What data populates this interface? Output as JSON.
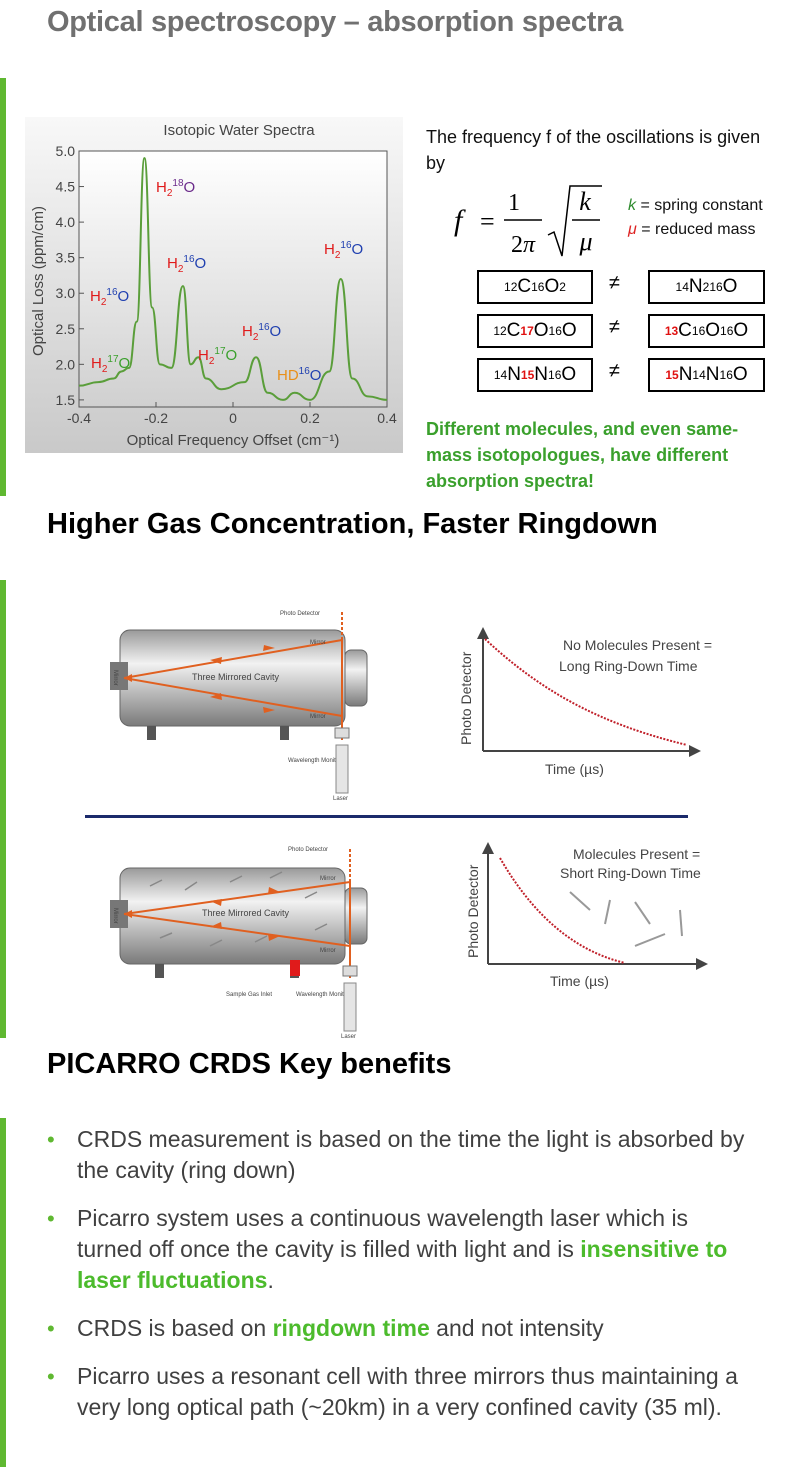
{
  "slide_title": "Optical spectroscopy – absorption spectra",
  "chart": {
    "title": "Isotopic Water Spectra",
    "xlabel": "Optical Frequency Offset (cm⁻¹)",
    "ylabel": "Optical Loss (ppm/cm)",
    "x_ticks": [
      "-0.4",
      "-0.2",
      "0",
      "0.2",
      "0.4"
    ],
    "y_ticks": [
      "1.5",
      "2.0",
      "2.5",
      "3.0",
      "3.5",
      "4.0",
      "4.5",
      "5.0"
    ],
    "peak_labels": {
      "h2_18o": {
        "main": "H",
        "sub": "2",
        "sup": "18",
        "tail": "O"
      },
      "h2_16o_a": {
        "main": "H",
        "sub": "2",
        "sup": "16",
        "tail": "O"
      },
      "h2_16o_b": {
        "main": "H",
        "sub": "2",
        "sup": "16",
        "tail": "O"
      },
      "h2_16o_c": {
        "main": "H",
        "sub": "2",
        "sup": "16",
        "tail": "O"
      },
      "h2_16o_d": {
        "main": "H",
        "sub": "2",
        "sup": "16",
        "tail": "O"
      },
      "h2_17o_a": {
        "main": "H",
        "sub": "2",
        "sup": "17",
        "tail": "O"
      },
      "h2_17o_b": {
        "main": "H",
        "sub": "2",
        "sup": "17",
        "tail": "O"
      },
      "hd16o": {
        "main": "HD",
        "sup": "16",
        "tail": "O"
      }
    }
  },
  "chart_data": {
    "type": "line",
    "title": "Isotopic Water Spectra",
    "xlabel": "Optical Frequency Offset (cm⁻¹)",
    "ylabel": "Optical Loss (ppm/cm)",
    "xlim": [
      -0.4,
      0.4
    ],
    "ylim": [
      1.4,
      5.0
    ],
    "series": [
      {
        "x": [
          -0.4,
          -0.35,
          -0.31,
          -0.29,
          -0.27,
          -0.25,
          -0.23,
          -0.21,
          -0.19,
          -0.16,
          -0.13,
          -0.11,
          -0.09,
          -0.07,
          -0.03,
          0.03,
          0.06,
          0.09,
          0.13,
          0.16,
          0.2,
          0.25,
          0.28,
          0.31,
          0.35,
          0.4
        ],
        "y": [
          1.7,
          1.75,
          1.8,
          1.9,
          1.95,
          2.6,
          4.9,
          2.8,
          2.0,
          1.95,
          3.1,
          2.0,
          2.1,
          1.8,
          1.65,
          1.75,
          2.1,
          1.6,
          1.5,
          1.6,
          1.5,
          1.9,
          3.2,
          1.8,
          1.55,
          1.5
        ],
        "color": "#5a9e3a"
      }
    ]
  },
  "physics": {
    "intro": "The  frequency  f of the oscillations is given by",
    "k_def": "= spring constant",
    "mu_def": "= reduced mass",
    "neq": "≠",
    "rows": [
      {
        "left": [
          {
            "t": "12",
            "s": "sup"
          },
          {
            "t": "C"
          },
          {
            "t": "16",
            "s": "sup"
          },
          {
            "t": "O"
          },
          {
            "t": "2",
            "s": "sub"
          }
        ],
        "right": [
          {
            "t": "14",
            "s": "sup"
          },
          {
            "t": "N"
          },
          {
            "t": "2",
            "s": "sub"
          },
          {
            "t": "16",
            "s": "sup"
          },
          {
            "t": "O"
          }
        ]
      },
      {
        "left": [
          {
            "t": "12",
            "s": "sup"
          },
          {
            "t": "C"
          },
          {
            "t": "17",
            "s": "supred"
          },
          {
            "t": "O"
          },
          {
            "t": "16",
            "s": "sup"
          },
          {
            "t": "O"
          }
        ],
        "right": [
          {
            "t": "13",
            "s": "supred"
          },
          {
            "t": "C"
          },
          {
            "t": "16",
            "s": "sup"
          },
          {
            "t": "O"
          },
          {
            "t": "16",
            "s": "sup"
          },
          {
            "t": "O"
          }
        ]
      },
      {
        "left": [
          {
            "t": "14",
            "s": "sup"
          },
          {
            "t": "N"
          },
          {
            "t": "15",
            "s": "supred"
          },
          {
            "t": "N"
          },
          {
            "t": "16",
            "s": "sup"
          },
          {
            "t": "O"
          }
        ],
        "right": [
          {
            "t": "15",
            "s": "supred"
          },
          {
            "t": "N"
          },
          {
            "t": "14",
            "s": "sup"
          },
          {
            "t": "N"
          },
          {
            "t": "16",
            "s": "sup"
          },
          {
            "t": "O"
          }
        ]
      }
    ],
    "note": "Different molecules, and even same-mass isotopologues, have different absorption spectra!"
  },
  "section2": {
    "title": "Higher Gas Concentration, Faster Ringdown",
    "diagram_top": {
      "photo_detector": "Photo Detector",
      "mirror_top": "Mirror",
      "mirror_bottom": "Mirror",
      "mirror_left": "Mirror",
      "cavity": "Three Mirrored Cavity",
      "wavelength_monitor": "Wavelength Monitor",
      "laser": "Laser"
    },
    "diagram_bottom": {
      "photo_detector": "Photo Detector",
      "mirror_top": "Mirror",
      "mirror_bottom": "Mirror",
      "mirror_left": "Mirror",
      "cavity": "Three Mirrored Cavity",
      "sample_gas_inlet": "Sample Gas Inlet",
      "wavelength_monitor": "Wavelength Monitor",
      "laser": "Laser"
    },
    "plot_top": {
      "ylabel": "Photo Detector",
      "xlabel": "Time (µs)",
      "caption_line1": "No Molecules Present =",
      "caption_line2": "Long Ring-Down Time"
    },
    "plot_bottom": {
      "ylabel": "Photo Detector",
      "xlabel": "Time (µs)",
      "caption_line1": "Molecules Present =",
      "caption_line2": "Short Ring-Down Time"
    }
  },
  "section3": {
    "title": "PICARRO CRDS Key benefits",
    "bullets": [
      {
        "parts": [
          {
            "t": "CRDS measurement is based on the time the light is absorbed by the cavity (ring down)"
          }
        ]
      },
      {
        "parts": [
          {
            "t": "Picarro system uses a continuous wavelength laser which is turned off once the cavity is filled with light and is "
          },
          {
            "t": "insensitive to laser fluctuations",
            "hl": true
          },
          {
            "t": "."
          }
        ]
      },
      {
        "parts": [
          {
            "t": "CRDS is based on "
          },
          {
            "t": "ringdown time",
            "hl": true
          },
          {
            "t": " and not intensity"
          }
        ]
      },
      {
        "parts": [
          {
            "t": "Picarro uses a resonant cell with three mirrors thus maintaining a very long optical path (~20km) in a very confined cavity (35 ml)."
          }
        ]
      }
    ]
  },
  "colors": {
    "accent_green": "#5fb831",
    "highlight_green": "#4cbb2c",
    "spectrum": "#5a9e3a",
    "laser": "#e06020",
    "divider": "#1b2a6b"
  }
}
